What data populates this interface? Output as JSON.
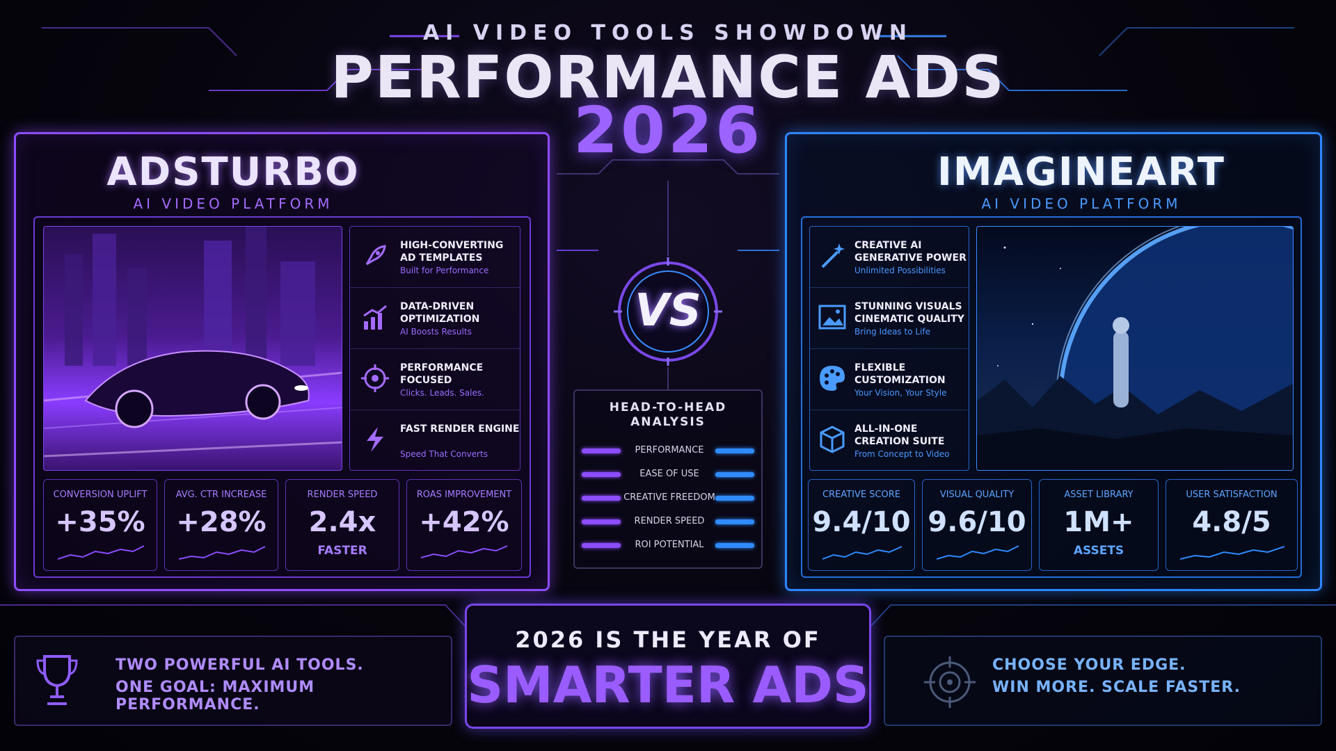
{
  "header": {
    "supertitle": "AI VIDEO TOOLS SHOWDOWN",
    "title": "PERFORMANCE ADS",
    "year": "2026"
  },
  "colors": {
    "left_accent": "#8e4dff",
    "right_accent": "#2f86ff",
    "background": "#05040b"
  },
  "left": {
    "name": "ADSTURBO",
    "tagline": "AI VIDEO PLATFORM",
    "features": [
      {
        "icon": "rocket-icon",
        "title": "HIGH-CONVERTING AD TEMPLATES",
        "subtitle": "Built for Performance"
      },
      {
        "icon": "bar-chart-icon",
        "title": "DATA-DRIVEN OPTIMIZATION",
        "subtitle": "AI Boosts Results"
      },
      {
        "icon": "target-icon",
        "title": "PERFORMANCE FOCUSED",
        "subtitle": "Clicks. Leads. Sales."
      },
      {
        "icon": "lightning-icon",
        "title": "FAST RENDER ENGINE",
        "subtitle": "Speed That Converts"
      }
    ],
    "stats": [
      {
        "label": "CONVERSION UPLIFT",
        "value": "+35%"
      },
      {
        "label": "AVG. CTR INCREASE",
        "value": "+28%"
      },
      {
        "label": "RENDER SPEED",
        "value": "2.4x",
        "sub": "FASTER"
      },
      {
        "label": "ROAS IMPROVEMENT",
        "value": "+42%"
      }
    ]
  },
  "right": {
    "name": "IMAGINEART",
    "tagline": "AI VIDEO PLATFORM",
    "features": [
      {
        "icon": "magic-wand-icon",
        "title": "CREATIVE AI GENERATIVE POWER",
        "subtitle": "Unlimited Possibilities"
      },
      {
        "icon": "image-icon",
        "title": "STUNNING VISUALS CINEMATIC QUALITY",
        "subtitle": "Bring Ideas to Life"
      },
      {
        "icon": "palette-icon",
        "title": "FLEXIBLE CUSTOMIZATION",
        "subtitle": "Your Vision, Your Style"
      },
      {
        "icon": "cube-icon",
        "title": "ALL-IN-ONE CREATION SUITE",
        "subtitle": "From Concept to Video"
      }
    ],
    "stats": [
      {
        "label": "CREATIVE SCORE",
        "value": "9.4/10"
      },
      {
        "label": "VISUAL QUALITY",
        "value": "9.6/10"
      },
      {
        "label": "ASSET LIBRARY",
        "value": "1M+",
        "sub": "ASSETS"
      },
      {
        "label": "USER SATISFACTION",
        "value": "4.8/5"
      }
    ]
  },
  "center": {
    "vs": "VS",
    "analysis_title_1": "HEAD-TO-HEAD",
    "analysis_title_2": "ANALYSIS",
    "rows": [
      "PERFORMANCE",
      "EASE OF USE",
      "CREATIVE FREEDOM",
      "RENDER SPEED",
      "ROI POTENTIAL"
    ]
  },
  "footer": {
    "left_line1": "TWO POWERFUL AI TOOLS.",
    "left_line2": "ONE GOAL: MAXIMUM PERFORMANCE.",
    "center_pre": "2026 IS THE YEAR OF",
    "center_main": "SMARTER ADS",
    "right_line1": "CHOOSE YOUR EDGE.",
    "right_line2": "WIN MORE. SCALE FASTER."
  }
}
